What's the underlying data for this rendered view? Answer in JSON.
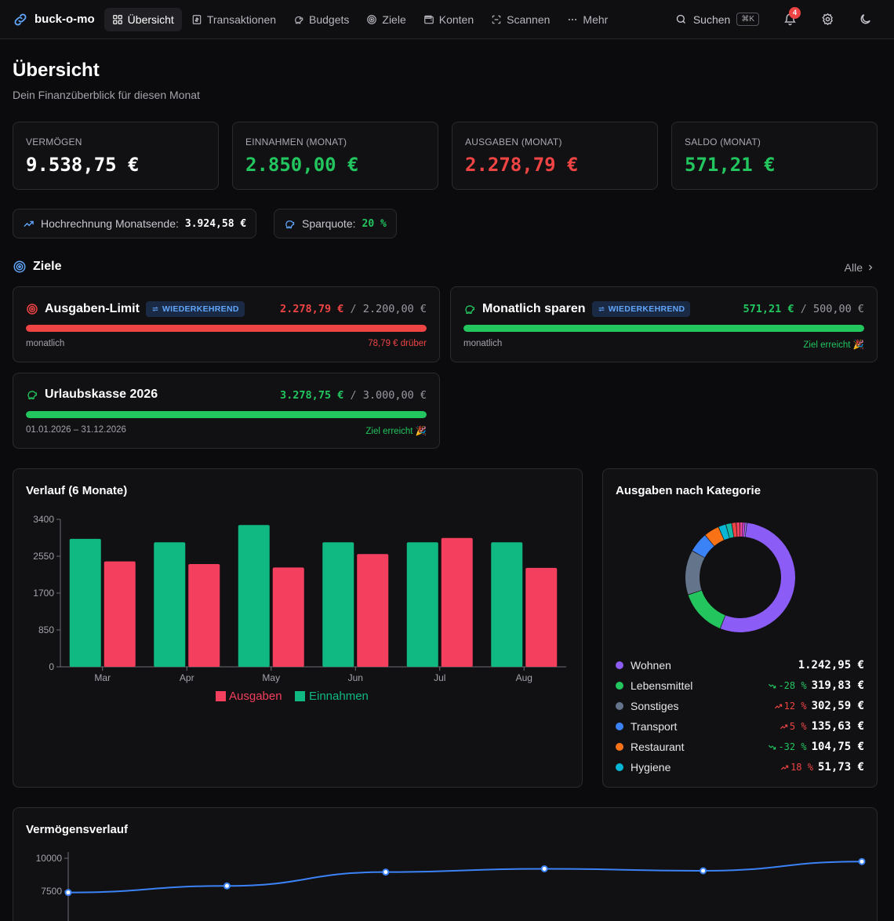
{
  "app": {
    "name": "buck-o-mo"
  },
  "nav": {
    "items": [
      {
        "label": "Übersicht",
        "icon": "dashboard-icon"
      },
      {
        "label": "Transaktionen",
        "icon": "receipt-icon"
      },
      {
        "label": "Budgets",
        "icon": "piggy-bank-icon"
      },
      {
        "label": "Ziele",
        "icon": "target-icon"
      },
      {
        "label": "Konten",
        "icon": "wallet-icon"
      },
      {
        "label": "Scannen",
        "icon": "scan-icon"
      },
      {
        "label": "Mehr",
        "icon": "more-icon"
      }
    ],
    "search_label": "Suchen",
    "search_shortcut": "⌘K",
    "notification_count": "4"
  },
  "header": {
    "title": "Übersicht",
    "subtitle": "Dein Finanzüberblick für diesen Monat"
  },
  "stats": [
    {
      "label": "VERMÖGEN",
      "value": "9.538,75 €",
      "color": "#ffffff"
    },
    {
      "label": "EINNAHMEN (MONAT)",
      "value": "2.850,00 €",
      "color": "#22c55e"
    },
    {
      "label": "AUSGABEN (MONAT)",
      "value": "2.278,79 €",
      "color": "#ef4444"
    },
    {
      "label": "SALDO (MONAT)",
      "value": "571,21 €",
      "color": "#22c55e"
    }
  ],
  "forecast": {
    "label": "Hochrechnung Monatsende:",
    "value": "3.924,58 €"
  },
  "savings_rate": {
    "label": "Sparquote:",
    "value": "20 %"
  },
  "goals_section": {
    "title": "Ziele",
    "all_link": "Alle"
  },
  "goals": [
    {
      "title": "Ausgaben-Limit",
      "tag": "WIEDERKEHREND",
      "current": "2.278,79 €",
      "target": "2.200,00 €",
      "period": "monatlich",
      "status": "78,79 € drüber",
      "progress": 1.0,
      "color": "#ef4444",
      "icon": "target-icon"
    },
    {
      "title": "Monatlich sparen",
      "tag": "WIEDERKEHREND",
      "current": "571,21 €",
      "target": "500,00 €",
      "period": "monatlich",
      "status": "Ziel erreicht 🎉",
      "progress": 1.0,
      "color": "#22c55e",
      "icon": "piggy-bank-icon"
    },
    {
      "title": "Urlaubskasse 2026",
      "tag": "",
      "current": "3.278,75 €",
      "target": "3.000,00 €",
      "period": "01.01.2026 – 31.12.2026",
      "status": "Ziel erreicht 🎉",
      "progress": 1.0,
      "color": "#22c55e",
      "icon": "piggy-bank-icon"
    }
  ],
  "history_chart": {
    "title": "Verlauf (6 Monate)",
    "chart_data": {
      "type": "bar",
      "categories": [
        "Mar",
        "Apr",
        "May",
        "Jun",
        "Jul",
        "Aug"
      ],
      "series": [
        {
          "name": "Einnahmen",
          "color": "#10b981",
          "values": [
            2950,
            2870,
            3270,
            2870,
            2870,
            2870
          ]
        },
        {
          "name": "Ausgaben",
          "color": "#f43f5e",
          "values": [
            2430,
            2370,
            2290,
            2600,
            2970,
            2280
          ]
        }
      ],
      "yticks": [
        0,
        850,
        1700,
        2550,
        3400
      ],
      "ylim": [
        0,
        3400
      ],
      "legend": [
        "Ausgaben",
        "Einnahmen"
      ]
    }
  },
  "category_chart": {
    "title": "Ausgaben nach Kategorie",
    "chart_data": {
      "type": "pie",
      "donut_values": [
        1242.95,
        319.83,
        302.59,
        135.63,
        104.75,
        51.73,
        40,
        30,
        25,
        20,
        15,
        12
      ],
      "donut_colors": [
        "#8b5cf6",
        "#22c55e",
        "#64748b",
        "#3b82f6",
        "#f97316",
        "#06b6d4",
        "#14b8a6",
        "#ef4444",
        "#f43f5e",
        "#ec4899",
        "#d946ef",
        "#a78bfa"
      ]
    },
    "rows": [
      {
        "label": "Wohnen",
        "color": "#8b5cf6",
        "trend": "",
        "trend_color": "",
        "trend_dir": "",
        "amount": "1.242,95 €"
      },
      {
        "label": "Lebensmittel",
        "color": "#22c55e",
        "trend": "-28 %",
        "trend_color": "#22c55e",
        "trend_dir": "down",
        "amount": "319,83 €"
      },
      {
        "label": "Sonstiges",
        "color": "#64748b",
        "trend": "12 %",
        "trend_color": "#ef4444",
        "trend_dir": "up",
        "amount": "302,59 €"
      },
      {
        "label": "Transport",
        "color": "#3b82f6",
        "trend": "5 %",
        "trend_color": "#ef4444",
        "trend_dir": "up",
        "amount": "135,63 €"
      },
      {
        "label": "Restaurant",
        "color": "#f97316",
        "trend": "-32 %",
        "trend_color": "#22c55e",
        "trend_dir": "down",
        "amount": "104,75 €"
      },
      {
        "label": "Hygiene",
        "color": "#06b6d4",
        "trend": "18 %",
        "trend_color": "#ef4444",
        "trend_dir": "up",
        "amount": "51,73 €"
      }
    ]
  },
  "wealth_chart": {
    "title": "Vermögensverlauf",
    "chart_data": {
      "type": "line",
      "y": [
        7400,
        7900,
        8950,
        9200,
        9050,
        9750
      ],
      "yticks": [
        7500,
        10000
      ],
      "color": "#3b82f6"
    }
  }
}
